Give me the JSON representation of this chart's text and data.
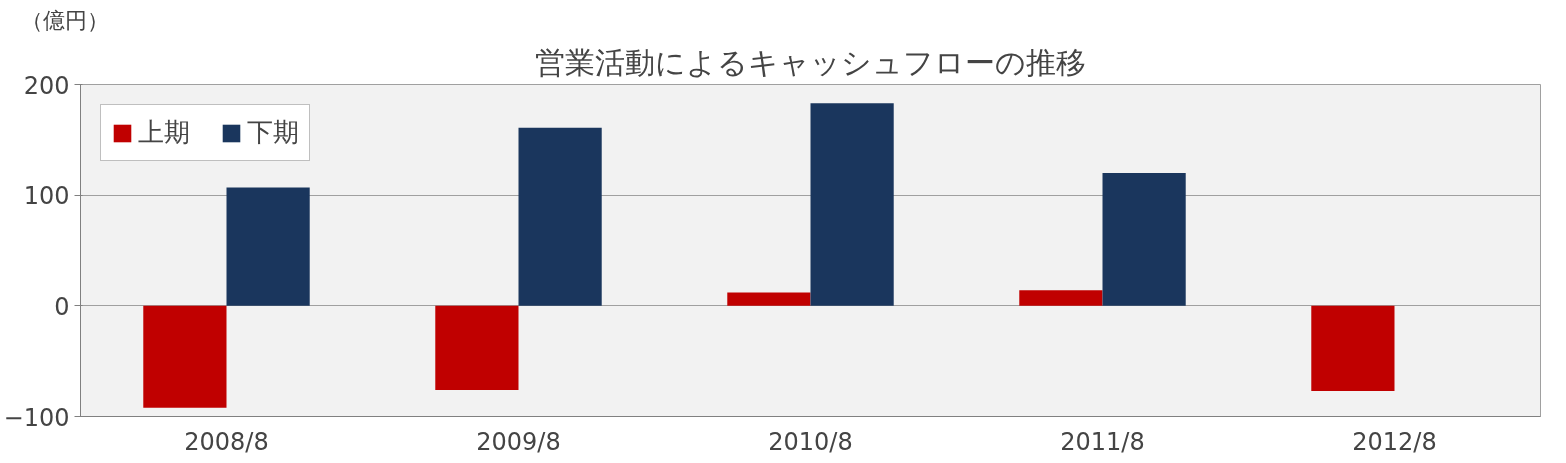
{
  "chart_data": {
    "type": "bar",
    "title": "営業活動によるキャッシュフローの推移",
    "ylabel": "（億円）",
    "categories": [
      "2008/8",
      "2009/8",
      "2010/8",
      "2011/8",
      "2012/8"
    ],
    "series": [
      {
        "name": "上期",
        "color": "#c00000",
        "values": [
          -92,
          -76,
          12,
          14,
          -77
        ]
      },
      {
        "name": "下期",
        "color": "#1a365d",
        "values": [
          107,
          161,
          183,
          120,
          null
        ]
      }
    ],
    "ylim": [
      -100,
      200
    ],
    "yticks": [
      -100,
      0,
      100,
      200
    ],
    "grid": "y",
    "legend": "top left"
  }
}
